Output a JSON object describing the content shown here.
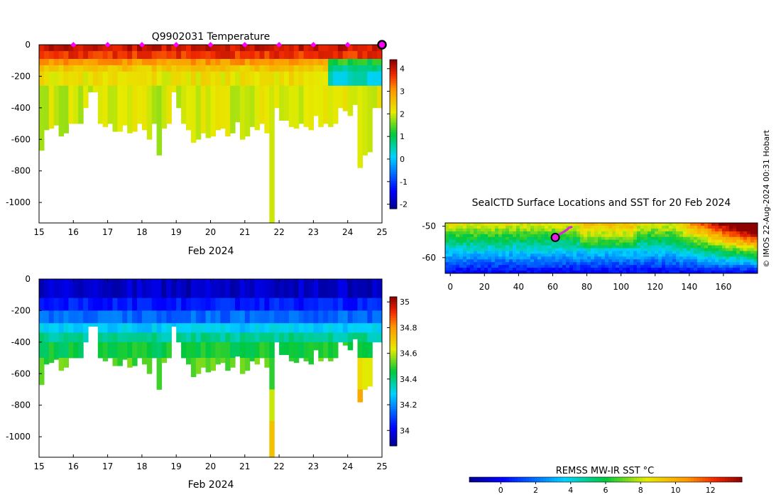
{
  "credit": "© IMOS 22-Aug-2024 00:31 Hobart",
  "chart_data": [
    {
      "id": "temperature",
      "type": "heatmap",
      "title": "Q9902031  Temperature",
      "xlabel": "Feb 2024",
      "ylabel": "",
      "xlim": [
        15,
        25
      ],
      "ylim": [
        -1130,
        0
      ],
      "xticks": [
        15,
        16,
        17,
        18,
        19,
        20,
        21,
        22,
        23,
        24,
        25
      ],
      "yticks": [
        0,
        -200,
        -400,
        -600,
        -800,
        -1000
      ],
      "colorbar": {
        "min": -2.2,
        "max": 4.4,
        "ticks": [
          -2,
          -1,
          0,
          1,
          2,
          3,
          4
        ]
      },
      "surface_markers_day": [
        16,
        17,
        18,
        19,
        20,
        21,
        22,
        23,
        24
      ],
      "current_marker_day": 25,
      "max_depth_m": [
        670,
        540,
        530,
        510,
        580,
        560,
        500,
        500,
        500,
        400,
        300,
        300,
        500,
        520,
        500,
        550,
        550,
        510,
        560,
        550,
        500,
        540,
        600,
        500,
        700,
        530,
        500,
        300,
        400,
        500,
        540,
        620,
        600,
        560,
        590,
        580,
        540,
        530,
        580,
        560,
        490,
        600,
        580,
        520,
        540,
        500,
        560,
        1130,
        400,
        480,
        480,
        520,
        530,
        500,
        520,
        540,
        450,
        520,
        500,
        520,
        500,
        400,
        420,
        450,
        380,
        780,
        700,
        680,
        400,
        400
      ],
      "temperature_layers_degC": [
        {
          "depth_to_m": 40,
          "value": 4.0
        },
        {
          "depth_to_m": 90,
          "value": 3.7
        },
        {
          "depth_to_m": 130,
          "value": 3.0
        },
        {
          "depth_to_m": 170,
          "value": 2.5
        },
        {
          "depth_to_m": 260,
          "value": 2.2
        },
        {
          "depth_to_m": 1130,
          "value": 2.0
        }
      ]
    },
    {
      "id": "salinity",
      "type": "heatmap",
      "title": "",
      "xlabel": "Feb 2024",
      "ylabel": "",
      "xlim": [
        15,
        25
      ],
      "ylim": [
        -1130,
        0
      ],
      "xticks": [
        15,
        16,
        17,
        18,
        19,
        20,
        21,
        22,
        23,
        24,
        25
      ],
      "yticks": [
        0,
        -200,
        -400,
        -600,
        -800,
        -1000
      ],
      "colorbar": {
        "min": 33.88,
        "max": 35.04,
        "ticks": [
          34,
          34.2,
          34.4,
          34.6,
          34.8,
          35
        ]
      },
      "salinity_layers_psu": [
        {
          "depth_to_m": 120,
          "value": 33.95
        },
        {
          "depth_to_m": 200,
          "value": 34.05
        },
        {
          "depth_to_m": 280,
          "value": 34.15
        },
        {
          "depth_to_m": 340,
          "value": 34.28
        },
        {
          "depth_to_m": 400,
          "value": 34.38
        },
        {
          "depth_to_m": 500,
          "value": 34.46
        },
        {
          "depth_to_m": 700,
          "value": 34.52
        },
        {
          "depth_to_m": 900,
          "value": 34.64
        },
        {
          "depth_to_m": 1130,
          "value": 34.72
        }
      ]
    },
    {
      "id": "sst_map",
      "type": "heatmap",
      "title": "SealCTD Surface Locations and SST for 20 Feb 2024",
      "xlim": [
        -3,
        180
      ],
      "ylim": [
        -65,
        -49
      ],
      "xticks": [
        0,
        20,
        40,
        60,
        80,
        100,
        120,
        140,
        160
      ],
      "yticks": [
        -50,
        -60
      ],
      "colorbar": {
        "label": "REMSS MW-IR SST °C",
        "min": -1.8,
        "max": 13.8,
        "ticks": [
          0,
          2,
          4,
          6,
          8,
          10,
          12
        ]
      },
      "track_lon_lat": [
        [
          61.5,
          -53.6
        ],
        [
          64,
          -52.6
        ],
        [
          66.5,
          -51.8
        ],
        [
          68.5,
          -51.1
        ],
        [
          69.5,
          -50.5
        ],
        [
          71,
          -50.3
        ]
      ],
      "current_position_lon_lat": [
        61.5,
        -53.6
      ]
    }
  ]
}
